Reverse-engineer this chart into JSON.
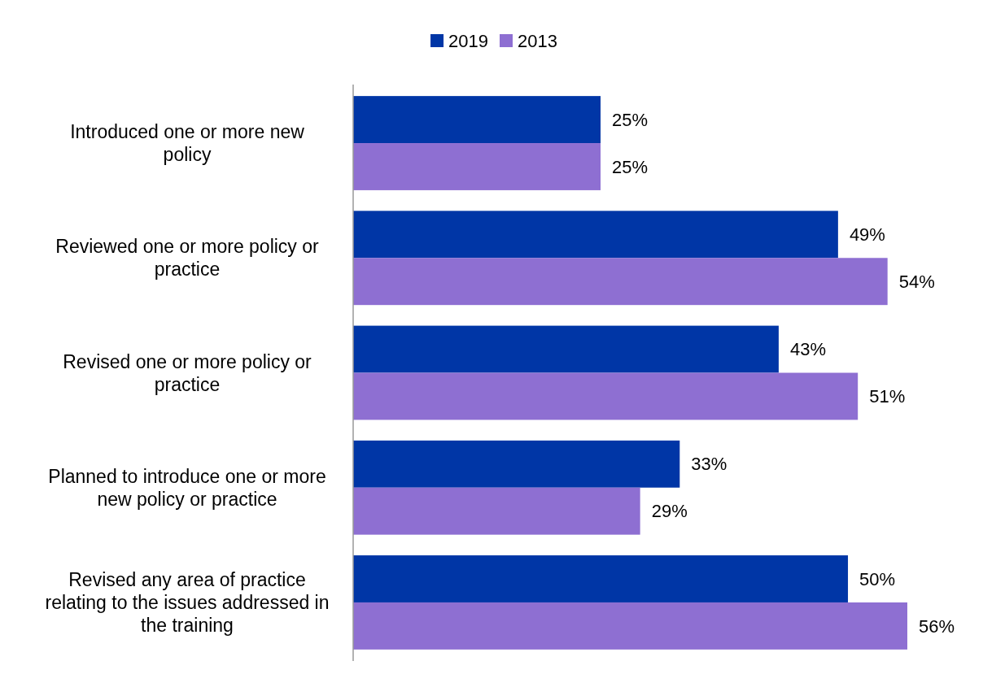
{
  "chart_data": {
    "type": "bar",
    "orientation": "horizontal",
    "categories": [
      "Introduced one or more new policy",
      "Reviewed one or more policy or practice",
      "Revised one or more policy or practice",
      "Planned to introduce one or more new policy or practice",
      "Revised any area of practice relating to the issues addressed in the training"
    ],
    "series": [
      {
        "name": "2019",
        "color": "#0036a6",
        "values": [
          25,
          49,
          43,
          33,
          50
        ],
        "value_labels": [
          "25%",
          "49%",
          "43%",
          "33%",
          "50%"
        ]
      },
      {
        "name": "2013",
        "color": "#8e6fd2",
        "values": [
          25,
          54,
          51,
          29,
          56
        ],
        "value_labels": [
          "25%",
          "54%",
          "51%",
          "29%",
          "56%"
        ]
      }
    ],
    "legend": "top",
    "tick_labels": "y"
  }
}
